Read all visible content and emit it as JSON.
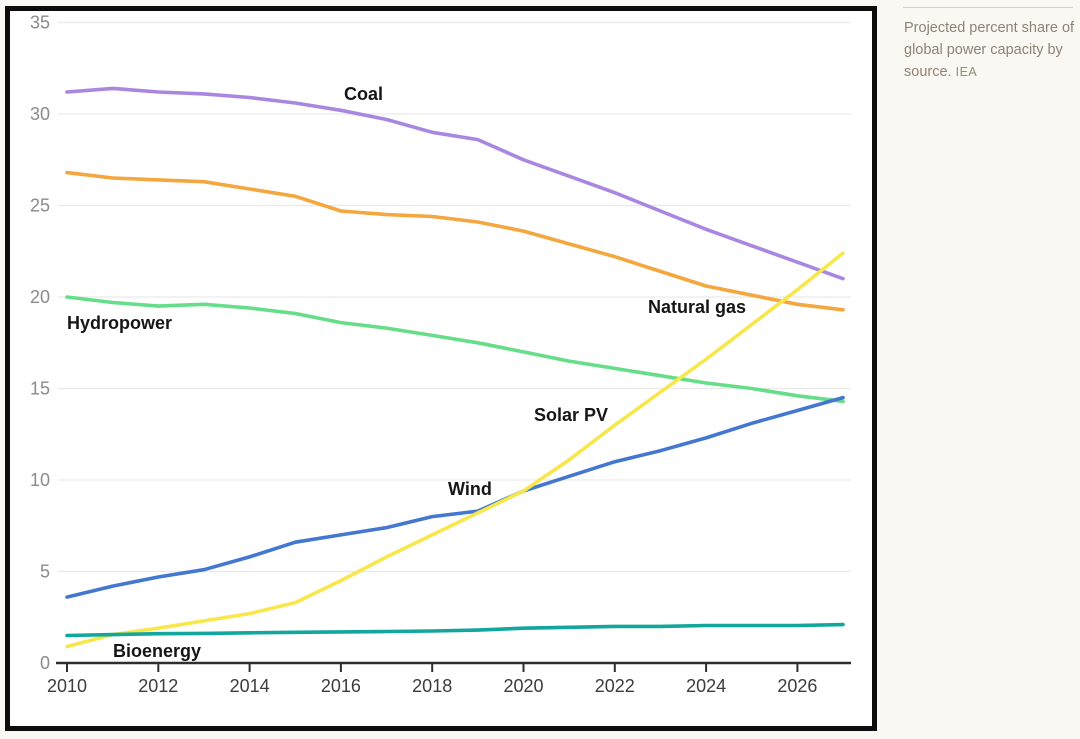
{
  "caption": {
    "text": "Projected percent share of global power capacity by source.",
    "source": "IEA"
  },
  "chart_data": {
    "type": "line",
    "title": "Projected percent share of global power capacity by source",
    "xlabel": "",
    "ylabel": "",
    "x": [
      2010,
      2011,
      2012,
      2013,
      2014,
      2015,
      2016,
      2017,
      2018,
      2019,
      2020,
      2021,
      2022,
      2023,
      2024,
      2025,
      2026,
      2027
    ],
    "xticks": [
      2010,
      2012,
      2014,
      2016,
      2018,
      2020,
      2022,
      2024,
      2026
    ],
    "yticks": [
      0,
      5,
      10,
      15,
      20,
      25,
      30,
      35
    ],
    "ylim": [
      0,
      35
    ],
    "grid": true,
    "legend_position": "inline-labels",
    "colors": {
      "grid": "#e9e9e9",
      "axis": "#2e2e2e",
      "ytick": "#8b8b8b",
      "xtick": "#3c3c3c",
      "border": "#0d0d0d",
      "background": "#ffffff",
      "page_background": "#faf8f2"
    },
    "series": [
      {
        "name": "Coal",
        "color": "#a987e1",
        "values": [
          31.2,
          31.4,
          31.2,
          31.1,
          30.9,
          30.6,
          30.2,
          29.7,
          29.0,
          28.6,
          27.5,
          26.6,
          25.7,
          24.7,
          23.7,
          22.8,
          21.9,
          21.0
        ]
      },
      {
        "name": "Natural gas",
        "color": "#f3a73e",
        "values": [
          26.8,
          26.5,
          26.4,
          26.3,
          25.9,
          25.5,
          24.7,
          24.5,
          24.4,
          24.1,
          23.6,
          22.9,
          22.2,
          21.4,
          20.6,
          20.1,
          19.6,
          19.3
        ]
      },
      {
        "name": "Hydropower",
        "color": "#66dd88",
        "values": [
          20.0,
          19.7,
          19.5,
          19.6,
          19.4,
          19.1,
          18.6,
          18.3,
          17.9,
          17.5,
          17.0,
          16.5,
          16.1,
          15.7,
          15.3,
          15.0,
          14.6,
          14.3
        ]
      },
      {
        "name": "Wind",
        "color": "#4377d0",
        "values": [
          3.6,
          4.2,
          4.7,
          5.1,
          5.8,
          6.6,
          7.0,
          7.4,
          8.0,
          8.3,
          9.4,
          10.2,
          11.0,
          11.6,
          12.3,
          13.1,
          13.8,
          14.5
        ]
      },
      {
        "name": "Solar PV",
        "color": "#f8e74b",
        "values": [
          0.9,
          1.55,
          1.9,
          2.3,
          2.7,
          3.3,
          4.5,
          5.8,
          7.0,
          8.2,
          9.4,
          11.1,
          13.0,
          14.8,
          16.6,
          18.5,
          20.4,
          22.4
        ]
      },
      {
        "name": "Bioenergy",
        "color": "#12a79d",
        "values": [
          1.5,
          1.55,
          1.6,
          1.62,
          1.65,
          1.68,
          1.7,
          1.72,
          1.75,
          1.8,
          1.9,
          1.95,
          2.0,
          2.0,
          2.05,
          2.05,
          2.05,
          2.1
        ]
      }
    ]
  }
}
